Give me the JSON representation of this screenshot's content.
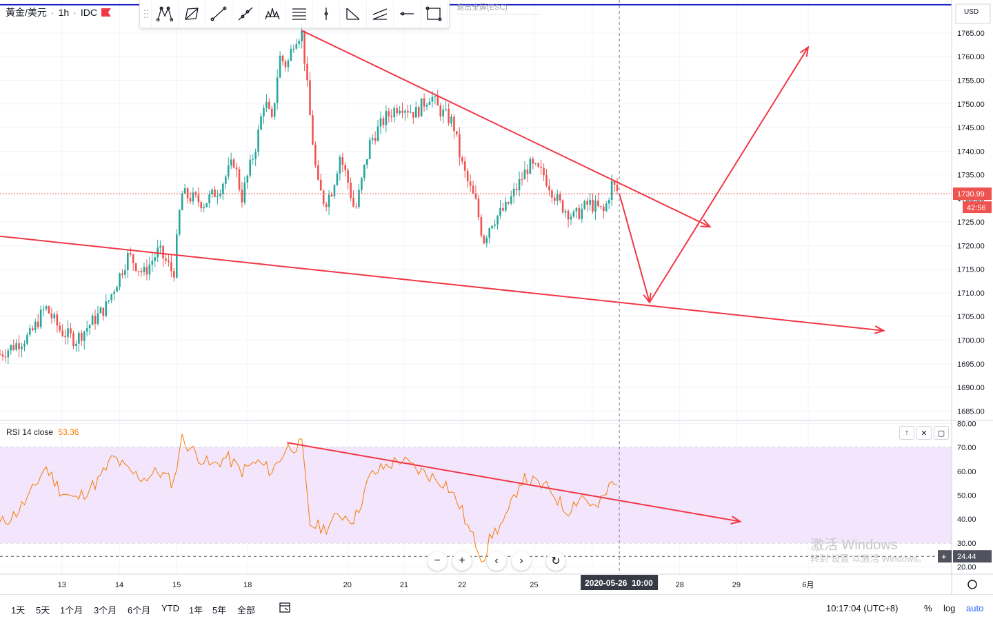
{
  "symbol": {
    "name": "黃金/美元",
    "interval": "1h",
    "source": "IDC"
  },
  "esc_hint": "退出全屏(ESC)",
  "currency": "USD",
  "rsi": {
    "label": "RSI 14 close",
    "value": "53.36",
    "current_tag": "24.44"
  },
  "price_tag": "1730.99",
  "countdown_tag": "42:56",
  "crosshair_date": "2020-05-26",
  "crosshair_time": "10:00",
  "ranges": [
    "1天",
    "5天",
    "1个月",
    "3个月",
    "6个月",
    "YTD",
    "1年",
    "5年",
    "全部"
  ],
  "clock": "10:17:04 (UTC+8)",
  "scale_options": [
    "%",
    "log",
    "auto"
  ],
  "watermark": {
    "line1": "激活 Windows",
    "line2": "转到“设置”以激活 Windows。"
  },
  "colors": {
    "up": "#26a69a",
    "down": "#ef5350",
    "drawing": "#f23645",
    "rsi_line": "#f57c00",
    "rsi_band": "#f3e5fc",
    "hline": "#1e22c9"
  },
  "chart_data": [
    {
      "type": "candlestick",
      "x_ticks": [
        "13",
        "14",
        "15",
        "18",
        "20",
        "21",
        "22",
        "25",
        "26",
        "28",
        "29",
        "6月"
      ],
      "y_ticks": [
        1685,
        1690,
        1695,
        1700,
        1705,
        1710,
        1715,
        1720,
        1725,
        1730,
        1735,
        1740,
        1745,
        1750,
        1755,
        1760,
        1765
      ],
      "ylim": [
        1683,
        1772
      ],
      "last_price": 1730.99,
      "horizontal_line": 1771,
      "close_path": [
        {
          "t": 0,
          "v": 1697
        },
        {
          "t": 4,
          "v": 1701
        },
        {
          "t": 6,
          "v": 1707
        },
        {
          "t": 8,
          "v": 1702
        },
        {
          "t": 10,
          "v": 1700
        },
        {
          "t": 14,
          "v": 1707
        },
        {
          "t": 17,
          "v": 1718
        },
        {
          "t": 19,
          "v": 1714
        },
        {
          "t": 21,
          "v": 1719
        },
        {
          "t": 23,
          "v": 1714
        },
        {
          "t": 24,
          "v": 1731
        },
        {
          "t": 27,
          "v": 1729
        },
        {
          "t": 29,
          "v": 1732
        },
        {
          "t": 31,
          "v": 1738
        },
        {
          "t": 32,
          "v": 1730
        },
        {
          "t": 34,
          "v": 1742
        },
        {
          "t": 35,
          "v": 1751
        },
        {
          "t": 36,
          "v": 1746
        },
        {
          "t": 37,
          "v": 1760
        },
        {
          "t": 38,
          "v": 1758
        },
        {
          "t": 39,
          "v": 1764
        },
        {
          "t": 40,
          "v": 1765
        },
        {
          "t": 41,
          "v": 1748
        },
        {
          "t": 42,
          "v": 1733
        },
        {
          "t": 43,
          "v": 1729
        },
        {
          "t": 44,
          "v": 1732
        },
        {
          "t": 45,
          "v": 1739
        },
        {
          "t": 46,
          "v": 1734
        },
        {
          "t": 47,
          "v": 1727
        },
        {
          "t": 49,
          "v": 1742
        },
        {
          "t": 51,
          "v": 1747
        },
        {
          "t": 53,
          "v": 1750
        },
        {
          "t": 55,
          "v": 1748
        },
        {
          "t": 57,
          "v": 1752
        },
        {
          "t": 58,
          "v": 1749
        },
        {
          "t": 60,
          "v": 1746
        },
        {
          "t": 61,
          "v": 1738
        },
        {
          "t": 62,
          "v": 1733
        },
        {
          "t": 63,
          "v": 1729
        },
        {
          "t": 64,
          "v": 1721
        },
        {
          "t": 65,
          "v": 1725
        },
        {
          "t": 67,
          "v": 1728
        },
        {
          "t": 69,
          "v": 1734
        },
        {
          "t": 70,
          "v": 1737
        },
        {
          "t": 72,
          "v": 1735
        },
        {
          "t": 74,
          "v": 1729
        },
        {
          "t": 76,
          "v": 1726
        },
        {
          "t": 78,
          "v": 1729
        },
        {
          "t": 80,
          "v": 1727
        },
        {
          "t": 81,
          "v": 1733
        },
        {
          "t": 82,
          "v": 1731
        }
      ],
      "drawings": [
        {
          "name": "upper-trendline",
          "from": {
            "t": 40,
            "v": 1765.5
          },
          "to": {
            "t": 94,
            "v": 1724
          }
        },
        {
          "name": "lower-trendline",
          "from": {
            "t": 0,
            "v": 1722
          },
          "to": {
            "t": 117,
            "v": 1702
          }
        },
        {
          "name": "projected-drop",
          "from": {
            "t": 82,
            "v": 1731
          },
          "to": {
            "t": 86,
            "v": 1708
          }
        },
        {
          "name": "projected-rally",
          "from": {
            "t": 86,
            "v": 1708
          },
          "to": {
            "t": 107,
            "v": 1762
          }
        }
      ]
    },
    {
      "type": "line",
      "name": "RSI 14 close",
      "y_ticks": [
        20,
        30,
        40,
        50,
        60,
        70,
        80
      ],
      "ylim": [
        17,
        81
      ],
      "band": [
        30,
        70
      ],
      "dashed_level": 24.44,
      "path": [
        {
          "t": 0,
          "v": 38
        },
        {
          "t": 2,
          "v": 42
        },
        {
          "t": 4,
          "v": 50
        },
        {
          "t": 6,
          "v": 62
        },
        {
          "t": 8,
          "v": 52
        },
        {
          "t": 10,
          "v": 48
        },
        {
          "t": 13,
          "v": 56
        },
        {
          "t": 15,
          "v": 66
        },
        {
          "t": 17,
          "v": 60
        },
        {
          "t": 19,
          "v": 57
        },
        {
          "t": 21,
          "v": 60
        },
        {
          "t": 23,
          "v": 55
        },
        {
          "t": 24,
          "v": 74
        },
        {
          "t": 26,
          "v": 67
        },
        {
          "t": 28,
          "v": 62
        },
        {
          "t": 30,
          "v": 66
        },
        {
          "t": 32,
          "v": 60
        },
        {
          "t": 34,
          "v": 64
        },
        {
          "t": 36,
          "v": 60
        },
        {
          "t": 38,
          "v": 70
        },
        {
          "t": 40,
          "v": 71
        },
        {
          "t": 41,
          "v": 38
        },
        {
          "t": 43,
          "v": 36
        },
        {
          "t": 45,
          "v": 42
        },
        {
          "t": 47,
          "v": 40
        },
        {
          "t": 49,
          "v": 58
        },
        {
          "t": 51,
          "v": 62
        },
        {
          "t": 53,
          "v": 65
        },
        {
          "t": 55,
          "v": 61
        },
        {
          "t": 57,
          "v": 58
        },
        {
          "t": 59,
          "v": 55
        },
        {
          "t": 61,
          "v": 45
        },
        {
          "t": 62,
          "v": 36
        },
        {
          "t": 63,
          "v": 30
        },
        {
          "t": 64,
          "v": 23
        },
        {
          "t": 65,
          "v": 33
        },
        {
          "t": 67,
          "v": 40
        },
        {
          "t": 69,
          "v": 57
        },
        {
          "t": 71,
          "v": 55
        },
        {
          "t": 73,
          "v": 52
        },
        {
          "t": 75,
          "v": 43
        },
        {
          "t": 77,
          "v": 50
        },
        {
          "t": 79,
          "v": 44
        },
        {
          "t": 81,
          "v": 55
        },
        {
          "t": 82,
          "v": 53
        }
      ],
      "drawings": [
        {
          "name": "rsi-trendline",
          "from": {
            "t": 38,
            "v": 72
          },
          "to": {
            "t": 98,
            "v": 39
          }
        }
      ]
    }
  ]
}
